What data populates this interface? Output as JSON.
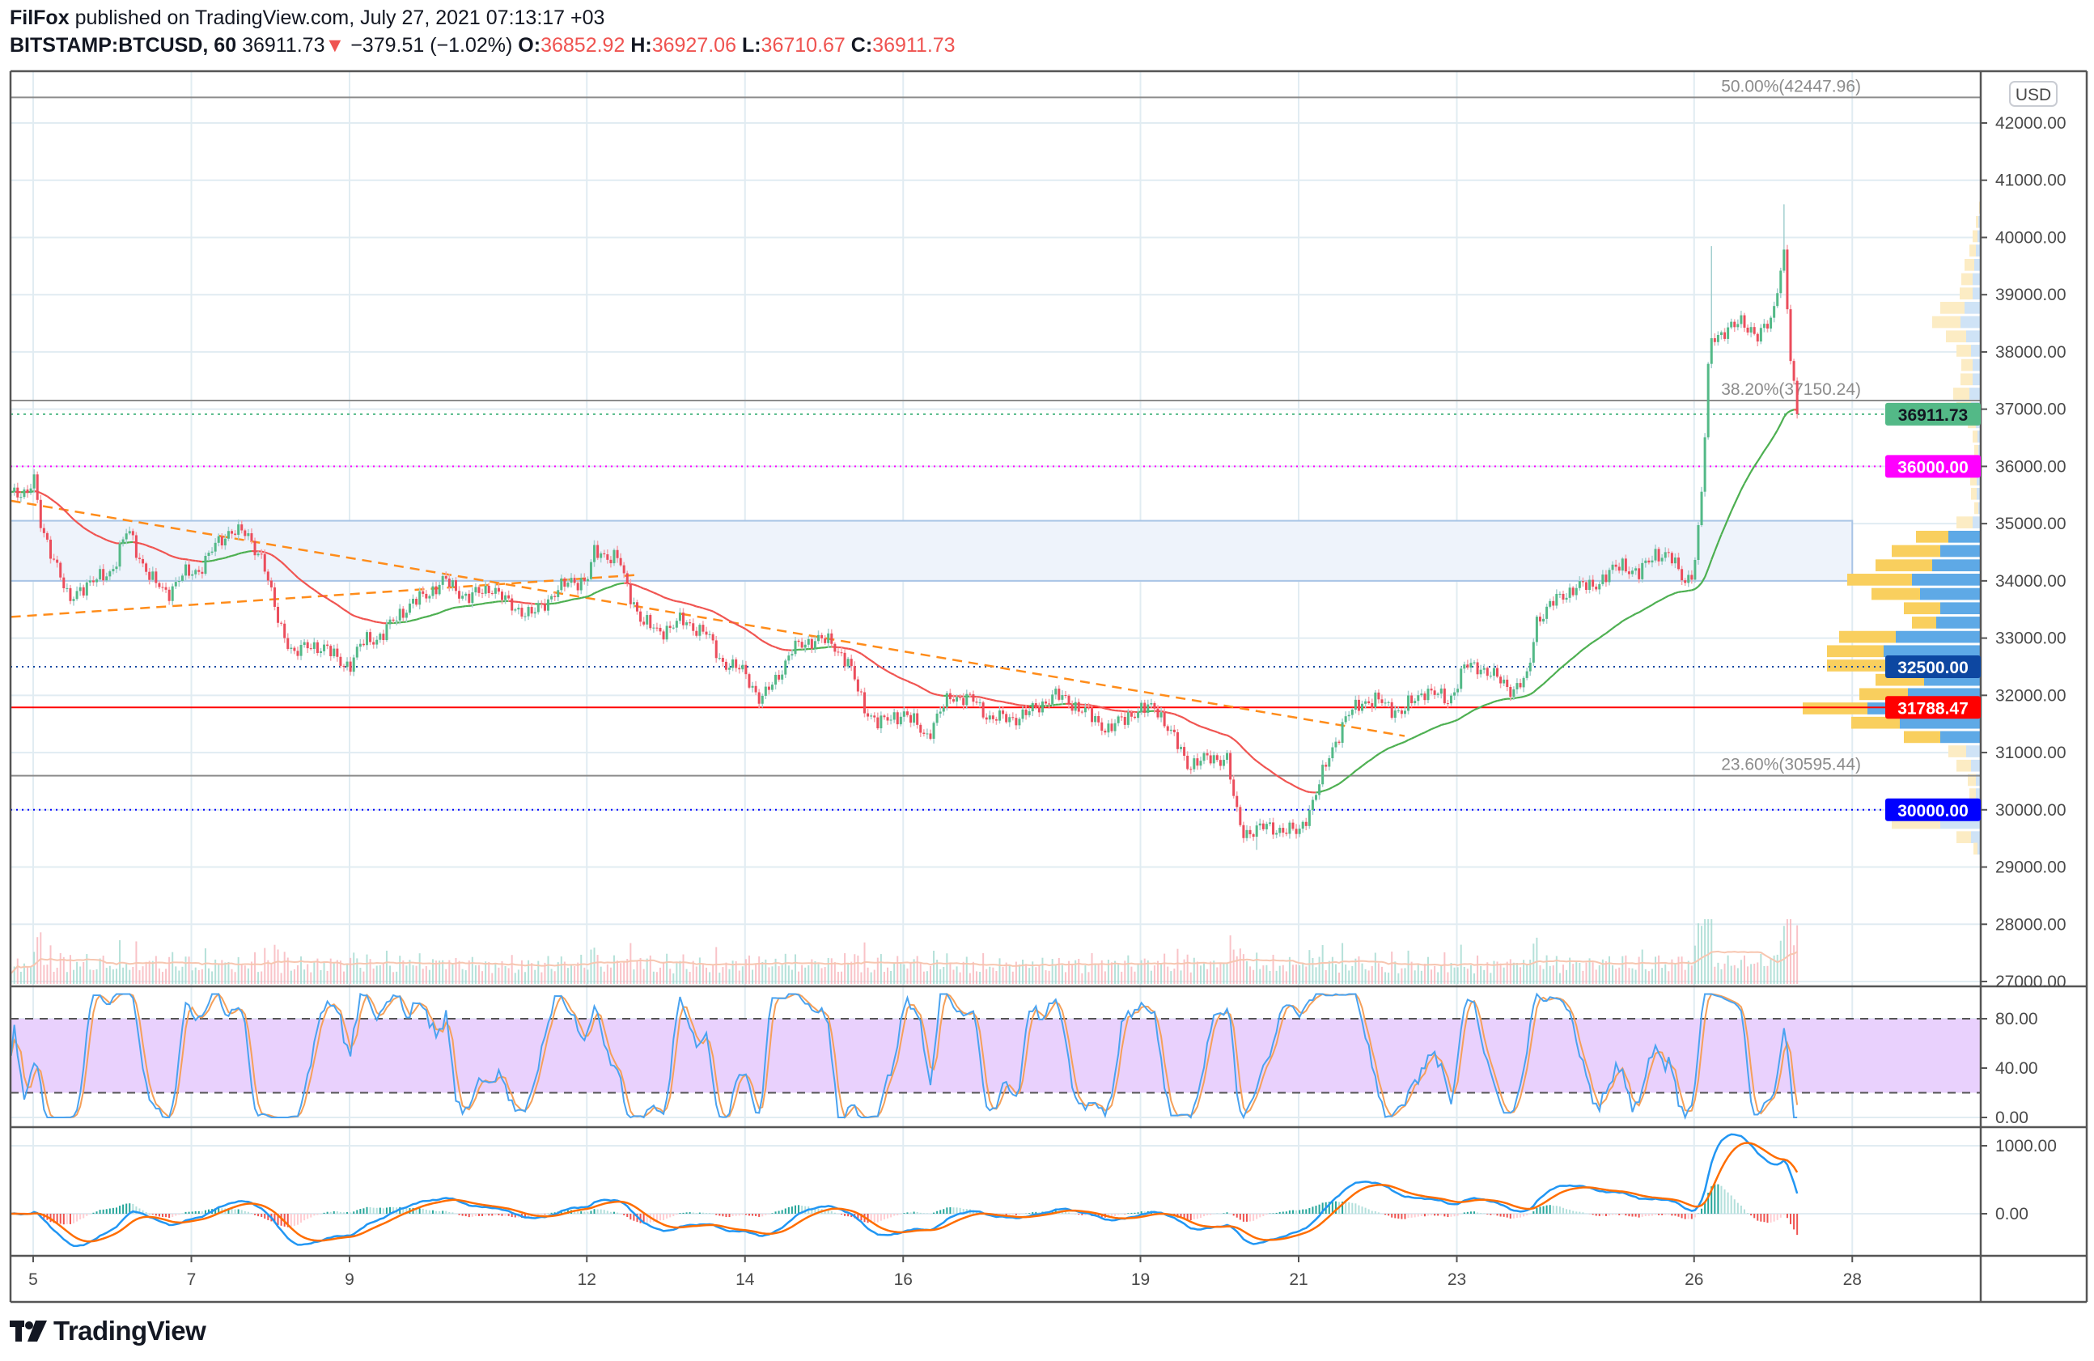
{
  "header": {
    "author": "FilFox",
    "published": "published on TradingView.com, July 27, 2021 07:13:17 +03"
  },
  "symbol": {
    "name": "BITSTAMP:BTCUSD, 60",
    "last": "36911.73",
    "direction_icon": "triangle-down-icon",
    "change": "−379.51 (−1.02%)",
    "o_label": "O:",
    "o": "36852.92",
    "h_label": "H:",
    "h": "36927.06",
    "l_label": "L:",
    "l": "36710.67",
    "c_label": "C:",
    "c": "36911.73"
  },
  "price_axis": {
    "currency": "USD",
    "ticks": [
      "42000.00",
      "41000.00",
      "40000.00",
      "39000.00",
      "38000.00",
      "37000.00",
      "36000.00",
      "35000.00",
      "34000.00",
      "33000.00",
      "32000.00",
      "31000.00",
      "30000.00",
      "29000.00",
      "28000.00",
      "27000.00"
    ]
  },
  "brand": {
    "name": "TradingView"
  },
  "colors": {
    "up": "#53b987",
    "down": "#eb4d5c",
    "grid": "#e1ecf2",
    "fib": "#8c8c8c",
    "zone": "#eef3fb",
    "zone_border": "#a9c5e6",
    "trend": "#ff8c1a",
    "stoch_k": "#4aa3f0",
    "stoch_d": "#f5a05a",
    "stoch_band": "#e9d1fd",
    "macd": "#2196f3",
    "signal": "#ff6d00"
  },
  "chart_data": [
    {
      "type": "candlestick",
      "interval": "60",
      "x_unit": "day of July 2021",
      "x_ticks": [
        5,
        7,
        9,
        12,
        14,
        16,
        19,
        21,
        23,
        26,
        28
      ],
      "ylim": [
        27000,
        42000
      ],
      "grid": true,
      "price_path": [
        [
          4.72,
          35500
        ],
        [
          4.95,
          35600
        ],
        [
          5.0,
          35850
        ],
        [
          5.1,
          34900
        ],
        [
          5.3,
          34300
        ],
        [
          5.45,
          33600
        ],
        [
          5.6,
          33900
        ],
        [
          5.8,
          34000
        ],
        [
          6.0,
          34200
        ],
        [
          6.2,
          34900
        ],
        [
          6.35,
          34400
        ],
        [
          6.5,
          34000
        ],
        [
          6.7,
          33800
        ],
        [
          6.9,
          34100
        ],
        [
          7.1,
          34200
        ],
        [
          7.3,
          34600
        ],
        [
          7.5,
          34900
        ],
        [
          7.7,
          34800
        ],
        [
          7.9,
          34400
        ],
        [
          8.0,
          33800
        ],
        [
          8.1,
          33300
        ],
        [
          8.3,
          32700
        ],
        [
          8.5,
          32900
        ],
        [
          8.7,
          32800
        ],
        [
          9.0,
          32500
        ],
        [
          9.2,
          33000
        ],
        [
          9.4,
          33000
        ],
        [
          9.6,
          33400
        ],
        [
          9.8,
          33600
        ],
        [
          10.2,
          34000
        ],
        [
          10.5,
          33700
        ],
        [
          10.8,
          33900
        ],
        [
          11.0,
          33600
        ],
        [
          11.3,
          33400
        ],
        [
          11.6,
          33800
        ],
        [
          11.8,
          34000
        ],
        [
          12.0,
          34000
        ],
        [
          12.1,
          34500
        ],
        [
          12.4,
          34400
        ],
        [
          12.5,
          33900
        ],
        [
          12.7,
          33300
        ],
        [
          12.9,
          33100
        ],
        [
          13.2,
          33300
        ],
        [
          13.5,
          33100
        ],
        [
          13.7,
          32600
        ],
        [
          14.0,
          32400
        ],
        [
          14.2,
          31900
        ],
        [
          14.4,
          32300
        ],
        [
          14.6,
          32800
        ],
        [
          14.9,
          33000
        ],
        [
          15.1,
          32900
        ],
        [
          15.3,
          32600
        ],
        [
          15.5,
          31800
        ],
        [
          15.7,
          31500
        ],
        [
          16.0,
          31700
        ],
        [
          16.3,
          31300
        ],
        [
          16.6,
          32000
        ],
        [
          16.9,
          31900
        ],
        [
          17.1,
          31600
        ],
        [
          17.4,
          31600
        ],
        [
          17.6,
          31700
        ],
        [
          17.9,
          32000
        ],
        [
          18.1,
          31900
        ],
        [
          18.3,
          31700
        ],
        [
          18.6,
          31400
        ],
        [
          18.9,
          31700
        ],
        [
          19.2,
          31800
        ],
        [
          19.4,
          31300
        ],
        [
          19.6,
          30800
        ],
        [
          19.9,
          30900
        ],
        [
          20.1,
          30900
        ],
        [
          20.2,
          30000
        ],
        [
          20.3,
          29600
        ],
        [
          20.6,
          29700
        ],
        [
          21.0,
          29600
        ],
        [
          21.2,
          30200
        ],
        [
          21.4,
          31000
        ],
        [
          21.6,
          31600
        ],
        [
          21.8,
          31900
        ],
        [
          22.0,
          31900
        ],
        [
          22.3,
          31700
        ],
        [
          22.6,
          32100
        ],
        [
          22.9,
          31900
        ],
        [
          23.1,
          32500
        ],
        [
          23.3,
          32500
        ],
        [
          23.5,
          32300
        ],
        [
          23.7,
          32100
        ],
        [
          23.9,
          32300
        ],
        [
          24.0,
          33300
        ],
        [
          24.2,
          33600
        ],
        [
          24.5,
          33900
        ],
        [
          24.7,
          33900
        ],
        [
          24.9,
          34100
        ],
        [
          25.1,
          34300
        ],
        [
          25.3,
          34100
        ],
        [
          25.5,
          34500
        ],
        [
          25.7,
          34400
        ],
        [
          25.9,
          34000
        ],
        [
          26.0,
          34200
        ],
        [
          26.05,
          34800
        ],
        [
          26.1,
          35600
        ],
        [
          26.15,
          36900
        ],
        [
          26.2,
          38300
        ],
        [
          26.4,
          38300
        ],
        [
          26.6,
          38600
        ],
        [
          26.8,
          38200
        ],
        [
          27.0,
          38700
        ],
        [
          27.1,
          39500
        ],
        [
          27.15,
          39700
        ],
        [
          27.2,
          38000
        ],
        [
          27.25,
          37600
        ],
        [
          27.3,
          36800
        ],
        [
          27.32,
          36911.73
        ]
      ],
      "extremes": [
        {
          "day": 5.0,
          "high": 35950
        },
        {
          "day": 26.2,
          "high": 39850
        },
        {
          "day": 27.13,
          "high": 40580
        },
        {
          "day": 20.45,
          "low": 29300
        }
      ],
      "horizontal_levels": [
        {
          "label": "50.00%(42447.96)",
          "price": 42447.96,
          "kind": "fib"
        },
        {
          "label": "38.20%(37150.24)",
          "price": 37150.24,
          "kind": "fib"
        },
        {
          "label": "23.60%(30595.44)",
          "price": 30595.44,
          "kind": "fib"
        },
        {
          "label": "36000.00",
          "price": 36000,
          "kind": "dotted",
          "color": "#ff00ff"
        },
        {
          "label": "32500.00",
          "price": 32500,
          "kind": "dotted",
          "color": "#0d47a1"
        },
        {
          "label": "30000.00",
          "price": 30000,
          "kind": "dotted",
          "color": "#0000ff"
        },
        {
          "label": "31788.47",
          "price": 31788.47,
          "kind": "solid",
          "color": "#ff0000"
        },
        {
          "label": "36911.73",
          "price": 36911.73,
          "kind": "last",
          "color": "#53b987"
        }
      ],
      "zone": {
        "from_day": 4.72,
        "to_day": 28,
        "low": 34000,
        "high": 35050
      },
      "trendlines": [
        {
          "from": [
            4.72,
            35400
          ],
          "to": [
            22.34,
            31290
          ]
        },
        {
          "from": [
            4.72,
            33370
          ],
          "to": [
            12.6,
            34100
          ]
        }
      ],
      "volume_profile": [
        [
          40500,
          1,
          1
        ],
        [
          40250,
          3,
          3
        ],
        [
          40000,
          6,
          4
        ],
        [
          39750,
          8,
          6
        ],
        [
          39500,
          12,
          8
        ],
        [
          39250,
          14,
          10
        ],
        [
          39000,
          16,
          10
        ],
        [
          38750,
          30,
          20
        ],
        [
          38500,
          35,
          25
        ],
        [
          38250,
          25,
          18
        ],
        [
          38000,
          18,
          12
        ],
        [
          37750,
          14,
          10
        ],
        [
          37500,
          15,
          10
        ],
        [
          37250,
          20,
          14
        ],
        [
          37000,
          18,
          12
        ],
        [
          36750,
          10,
          6
        ],
        [
          36500,
          6,
          4
        ],
        [
          36250,
          5,
          3
        ],
        [
          36000,
          6,
          4
        ],
        [
          35750,
          8,
          5
        ],
        [
          35500,
          7,
          5
        ],
        [
          35250,
          5,
          3
        ],
        [
          35000,
          20,
          10
        ],
        [
          34750,
          40,
          40
        ],
        [
          34500,
          60,
          50
        ],
        [
          34250,
          70,
          60
        ],
        [
          34000,
          80,
          85
        ],
        [
          33750,
          60,
          75
        ],
        [
          33500,
          45,
          50
        ],
        [
          33250,
          30,
          55
        ],
        [
          33000,
          70,
          105
        ],
        [
          32750,
          70,
          120
        ],
        [
          32500,
          75,
          115
        ],
        [
          32250,
          60,
          70
        ],
        [
          32000,
          60,
          90
        ],
        [
          31750,
          80,
          140
        ],
        [
          31500,
          60,
          100
        ],
        [
          31250,
          45,
          50
        ],
        [
          31000,
          22,
          18
        ],
        [
          30750,
          18,
          12
        ],
        [
          30500,
          10,
          6
        ],
        [
          30250,
          8,
          6
        ],
        [
          30000,
          14,
          10
        ],
        [
          29750,
          60,
          50
        ],
        [
          29500,
          18,
          12
        ],
        [
          29300,
          5,
          4
        ]
      ],
      "value_area": [
        31100,
        34900
      ]
    },
    {
      "type": "line",
      "indicator": "stochastic",
      "ylim": [
        0,
        100
      ],
      "ticks": [
        "80.00",
        "40.00",
        "0.00"
      ],
      "band": [
        20,
        80
      ]
    },
    {
      "type": "line",
      "indicator": "macd",
      "ticks": [
        "1000.00",
        "0.00"
      ]
    }
  ]
}
